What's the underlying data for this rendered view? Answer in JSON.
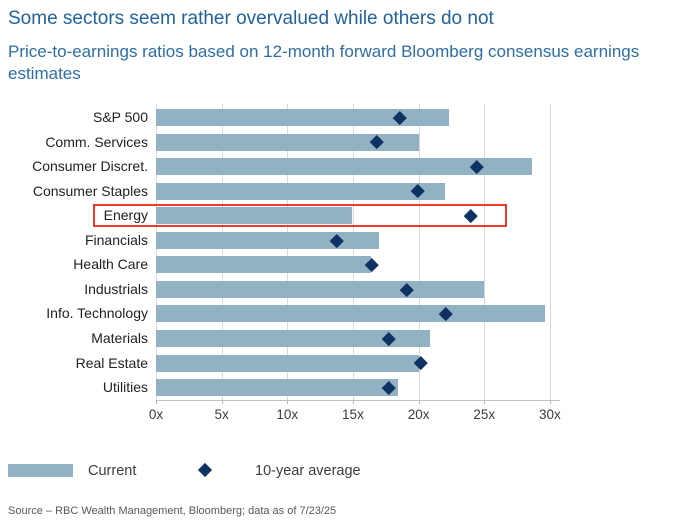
{
  "header": {
    "title": "Some sectors seem rather overvalued while others do not",
    "subtitle": "Price-to-earnings ratios based on 12-month forward Bloomberg consensus earnings estimates"
  },
  "chart_data": {
    "type": "bar",
    "orientation": "horizontal",
    "title": "Price-to-earnings ratios based on 12-month forward Bloomberg consensus earnings estimates",
    "categories": [
      "S&P 500",
      "Comm. Services",
      "Consumer Discret.",
      "Consumer Staples",
      "Energy",
      "Financials",
      "Health Care",
      "Industrials",
      "Info. Technology",
      "Materials",
      "Real Estate",
      "Utilities"
    ],
    "series": [
      {
        "name": "Current",
        "marker": "bar",
        "color": "#92b1c3",
        "values": [
          22.3,
          20.0,
          28.6,
          22.0,
          14.9,
          17.0,
          16.4,
          25.0,
          29.6,
          20.9,
          20.0,
          18.4
        ]
      },
      {
        "name": "10-year average",
        "marker": "diamond",
        "color": "#0f3264",
        "values": [
          18.6,
          16.8,
          24.4,
          19.9,
          24.0,
          13.8,
          16.4,
          19.1,
          22.1,
          17.7,
          20.2,
          17.7
        ]
      }
    ],
    "x_ticks": [
      "0x",
      "5x",
      "10x",
      "15x",
      "20x",
      "25x",
      "30x"
    ],
    "x_tick_values": [
      0,
      5,
      10,
      15,
      20,
      25,
      30
    ],
    "xlim": [
      0,
      30.8
    ],
    "grid": "vertical",
    "legend_position": "bottom",
    "highlight": {
      "category": "Energy",
      "color": "#ee392d"
    }
  },
  "colors": {
    "title_blue": "#21639e",
    "subtitle_blue": "#2d6ea6",
    "bar": "#92b1c3",
    "diamond": "#0f3264",
    "highlight_red": "#ee392d",
    "gridline": "#d9d9d9"
  },
  "footer": {
    "source": "Source – RBC Wealth Management, Bloomberg; data as of 7/23/25"
  }
}
